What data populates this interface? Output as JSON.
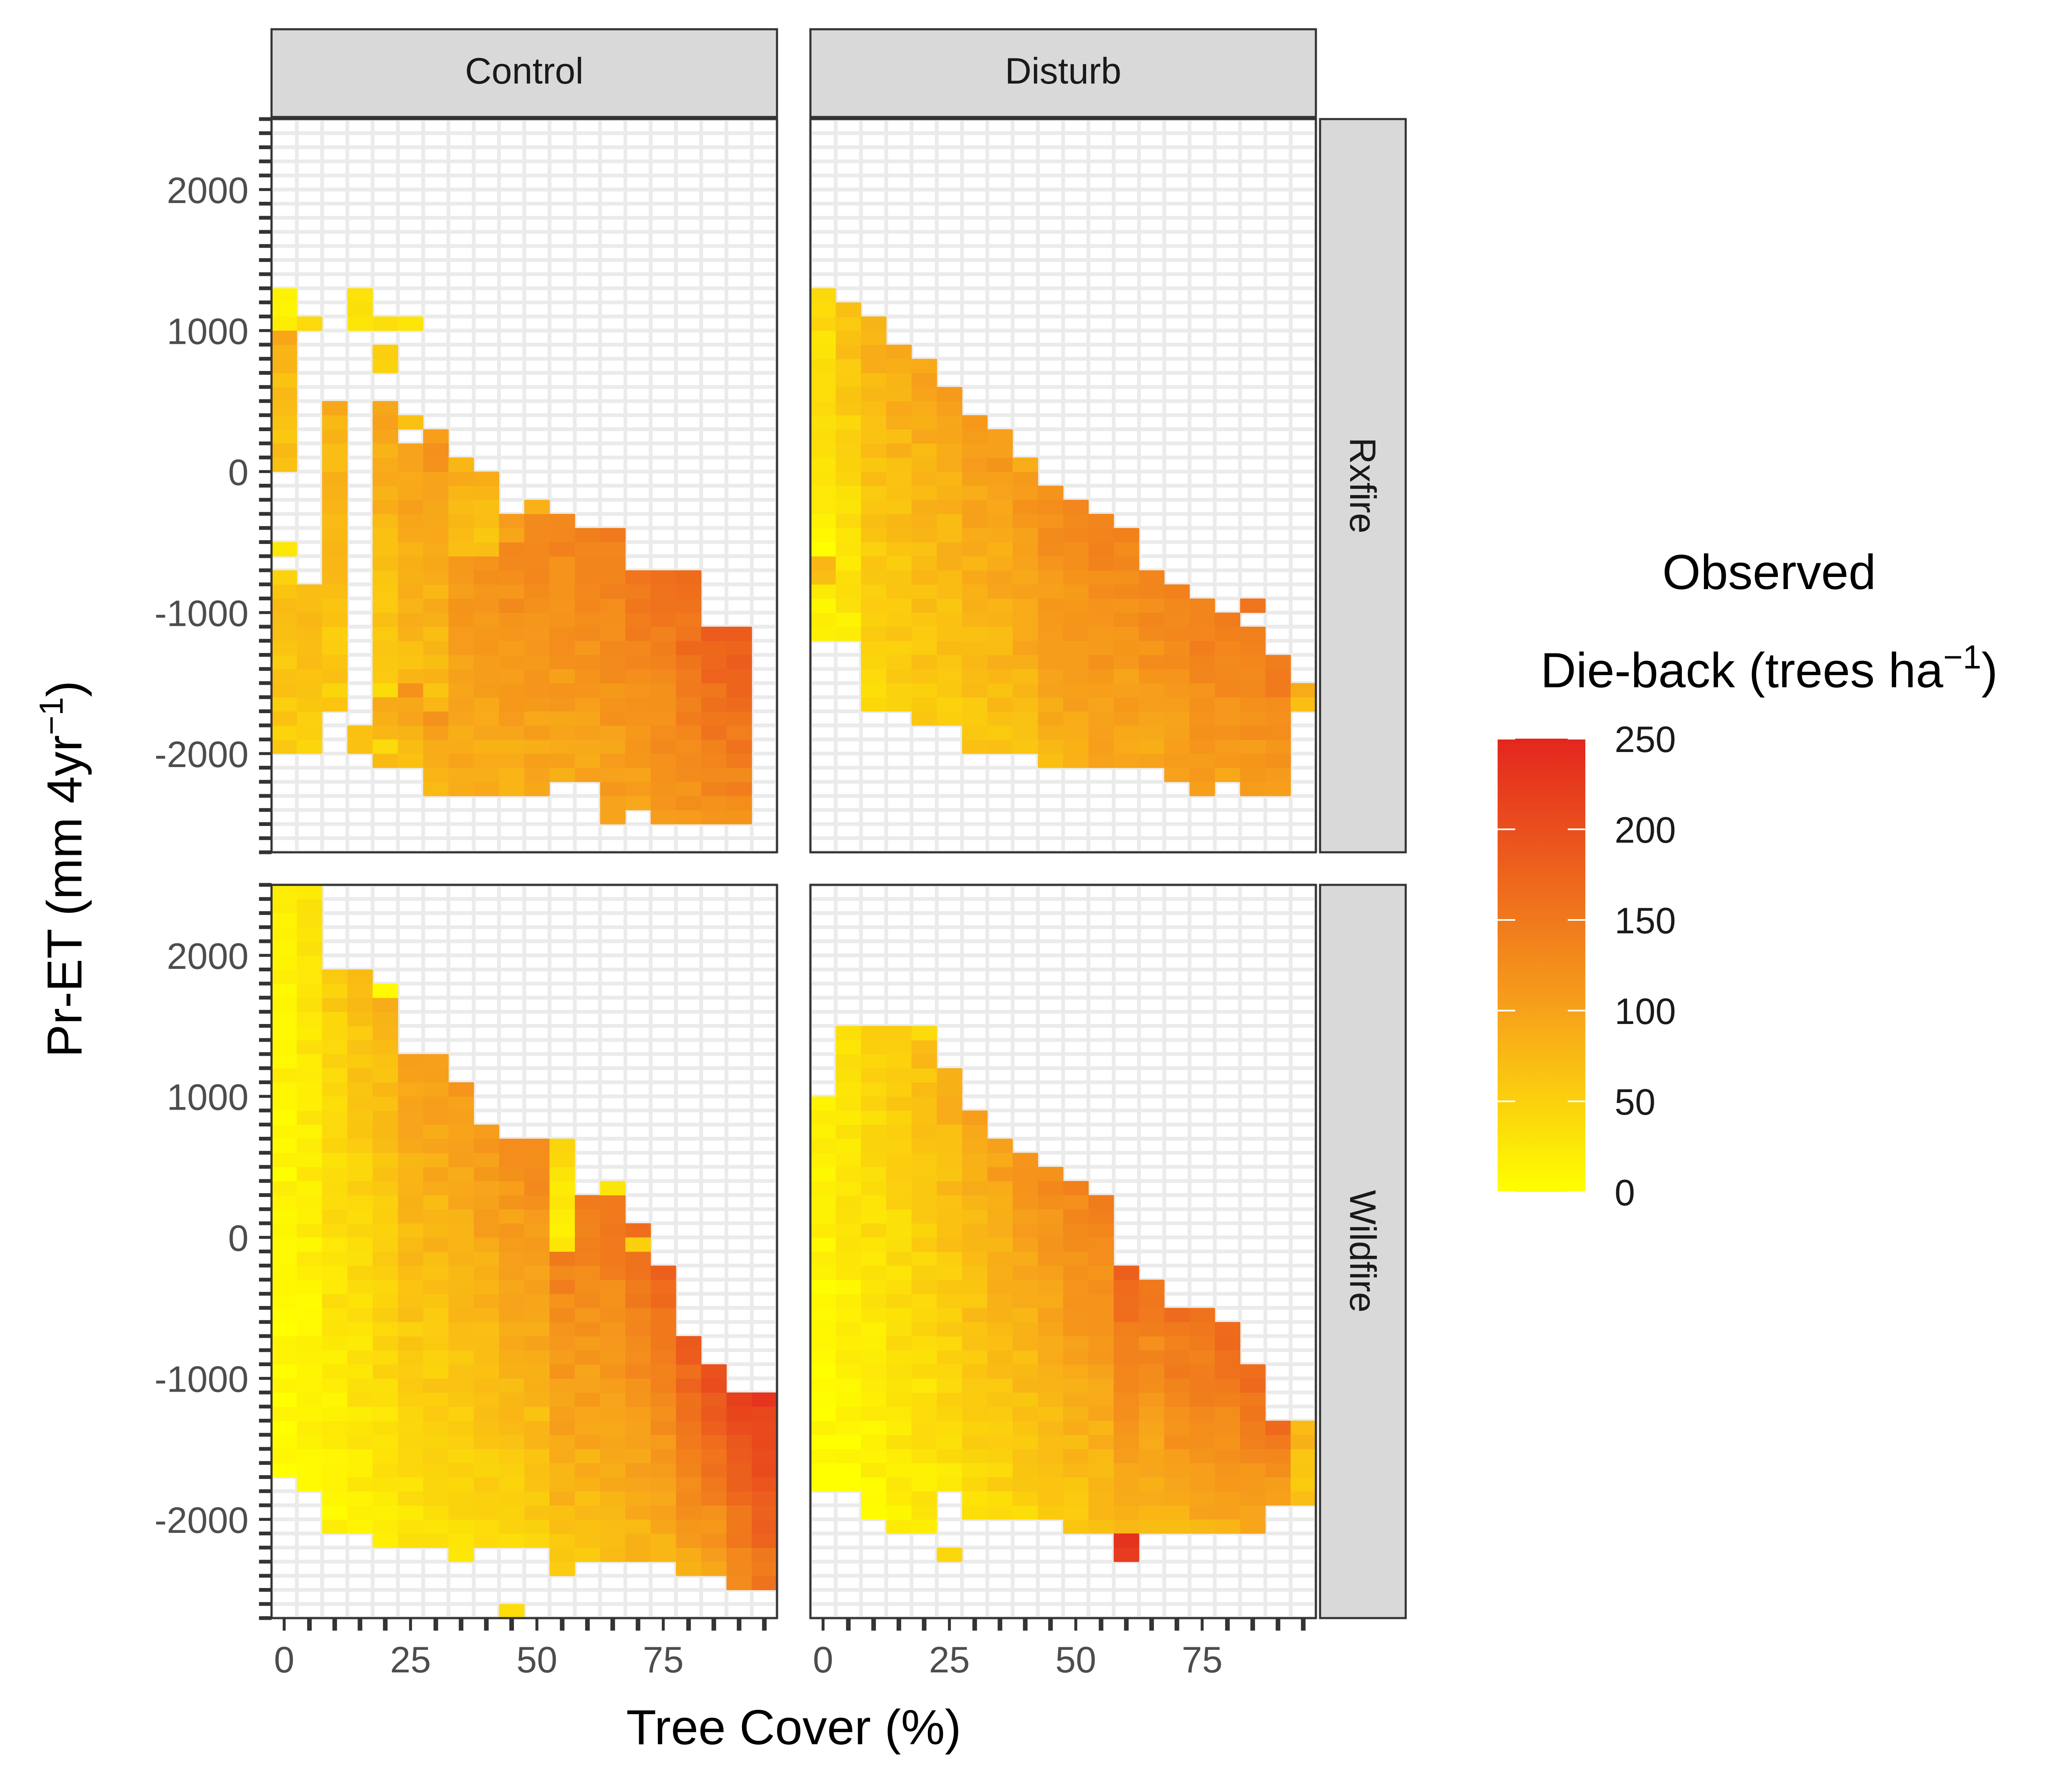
{
  "chart_data": {
    "type": "heatmap",
    "facet_columns": [
      "Control",
      "Disturb"
    ],
    "facet_rows": [
      "Rxfire",
      "Wildfire"
    ],
    "xlabel": "Tree Cover (%)",
    "ylabel": {
      "main": "Pr-ET (mm 4yr",
      "sup": "−1",
      "close": ")"
    },
    "x_ticks": [
      0,
      25,
      50,
      75
    ],
    "y_ticks": [
      2000,
      1000,
      0,
      -1000,
      -2000
    ],
    "x_range": [
      -2.5,
      97.5
    ],
    "y_range": [
      -2700,
      2500
    ],
    "bin_width_x": 5,
    "bin_width_y": 100,
    "color_scale": {
      "low": "#FFFF00",
      "mid": "#F7A21B",
      "high": "#E3261E",
      "min": 0,
      "max": 250
    },
    "legend": {
      "title_line1": "Observed",
      "title_line2": "Die-back (trees ha",
      "title_sup": "−1",
      "title_close": ")",
      "ticks": [
        250,
        200,
        150,
        100,
        50,
        0
      ],
      "position": "right"
    },
    "grid": true,
    "panels": {
      "Control|Rxfire": [
        [
          0,
          -2000,
          -800,
          55,
          70
        ],
        [
          0,
          1000,
          1300,
          15,
          20
        ],
        [
          5,
          -2000,
          -800,
          45,
          80
        ],
        [
          0,
          0,
          1000,
          40,
          90
        ],
        [
          5,
          1000,
          1100,
          40,
          50
        ],
        [
          15,
          1000,
          1300,
          30,
          40
        ],
        [
          0,
          0,
          200,
          65,
          80
        ],
        [
          0,
          -600,
          -500,
          20,
          30
        ],
        [
          0,
          -800,
          -700,
          45,
          55
        ],
        [
          10,
          -1700,
          500,
          55,
          85
        ],
        [
          15,
          -2000,
          -1800,
          60,
          70
        ],
        [
          20,
          -1600,
          500,
          50,
          100
        ],
        [
          20,
          -2100,
          -1600,
          65,
          85
        ],
        [
          20,
          -2000,
          -1900,
          45,
          50
        ],
        [
          20,
          1000,
          1100,
          45,
          50
        ],
        [
          20,
          700,
          900,
          45,
          60
        ],
        [
          25,
          -2100,
          -1500,
          75,
          110
        ],
        [
          25,
          -1500,
          200,
          70,
          105
        ],
        [
          25,
          1000,
          1100,
          20,
          25
        ],
        [
          25,
          300,
          400,
          60,
          70
        ],
        [
          30,
          -2300,
          -1700,
          80,
          110
        ],
        [
          30,
          -1700,
          300,
          70,
          110
        ],
        [
          30,
          0,
          200,
          110,
          120
        ],
        [
          35,
          -2300,
          -600,
          85,
          115
        ],
        [
          35,
          -600,
          100,
          70,
          85
        ],
        [
          40,
          -2300,
          -600,
          85,
          120
        ],
        [
          40,
          -600,
          0,
          65,
          80
        ],
        [
          45,
          -2300,
          -500,
          85,
          130
        ],
        [
          45,
          -500,
          -300,
          90,
          100
        ],
        [
          50,
          -2300,
          -300,
          90,
          135
        ],
        [
          50,
          -300,
          -200,
          90,
          100
        ],
        [
          55,
          -2200,
          -300,
          95,
          135
        ],
        [
          60,
          -2200,
          -400,
          95,
          140
        ],
        [
          65,
          -2500,
          -700,
          100,
          140
        ],
        [
          65,
          -2200,
          -400,
          100,
          145
        ],
        [
          70,
          -2400,
          -700,
          100,
          150
        ],
        [
          75,
          -2500,
          -700,
          105,
          155
        ],
        [
          75,
          -900,
          -700,
          155,
          170
        ],
        [
          80,
          -2500,
          -1100,
          110,
          165
        ],
        [
          80,
          -1100,
          -700,
          145,
          165
        ],
        [
          85,
          -2500,
          -1100,
          120,
          180
        ],
        [
          90,
          -2500,
          -1100,
          125,
          185
        ]
      ],
      "Disturb|Rxfire": [
        [
          0,
          -1200,
          1300,
          15,
          40
        ],
        [
          0,
          -800,
          -600,
          70,
          80
        ],
        [
          0,
          -600,
          -300,
          5,
          15
        ],
        [
          5,
          -1200,
          1200,
          20,
          70
        ],
        [
          10,
          -1700,
          1100,
          40,
          85
        ],
        [
          15,
          -1700,
          900,
          45,
          90
        ],
        [
          20,
          -1800,
          800,
          55,
          95
        ],
        [
          25,
          -1800,
          600,
          55,
          100
        ],
        [
          30,
          -2000,
          400,
          60,
          105
        ],
        [
          35,
          -2000,
          300,
          65,
          110
        ],
        [
          40,
          -2000,
          0,
          70,
          115
        ],
        [
          40,
          0,
          100,
          80,
          90
        ],
        [
          45,
          -2100,
          -100,
          80,
          125
        ],
        [
          50,
          -2100,
          -200,
          85,
          130
        ],
        [
          55,
          -2100,
          -300,
          90,
          140
        ],
        [
          60,
          -2100,
          -400,
          90,
          135
        ],
        [
          65,
          -2100,
          -700,
          90,
          140
        ],
        [
          70,
          -2200,
          -800,
          95,
          140
        ],
        [
          75,
          -2300,
          -900,
          100,
          145
        ],
        [
          80,
          -2200,
          -1000,
          100,
          145
        ],
        [
          85,
          -2300,
          -1100,
          100,
          150
        ],
        [
          85,
          -1000,
          -900,
          150,
          155
        ],
        [
          90,
          -2300,
          -1300,
          105,
          150
        ],
        [
          95,
          -1700,
          -1500,
          75,
          85
        ]
      ],
      "Control|Wildfire": [
        [
          0,
          -1700,
          2500,
          0,
          20
        ],
        [
          5,
          -1800,
          2500,
          5,
          30
        ],
        [
          10,
          -2100,
          1900,
          10,
          55
        ],
        [
          15,
          -2100,
          1900,
          15,
          70
        ],
        [
          20,
          -2200,
          1700,
          20,
          80
        ],
        [
          20,
          1700,
          1800,
          15,
          20
        ],
        [
          25,
          -2200,
          1300,
          25,
          100
        ],
        [
          30,
          -2200,
          1300,
          30,
          105
        ],
        [
          35,
          -2300,
          1100,
          35,
          110
        ],
        [
          40,
          -2200,
          800,
          40,
          115
        ],
        [
          45,
          -2200,
          700,
          45,
          120
        ],
        [
          50,
          -2200,
          700,
          50,
          130
        ],
        [
          55,
          -2400,
          -100,
          60,
          140
        ],
        [
          55,
          -100,
          700,
          20,
          40
        ],
        [
          60,
          -2300,
          300,
          65,
          145
        ],
        [
          65,
          -2300,
          300,
          70,
          150
        ],
        [
          65,
          300,
          400,
          30,
          40
        ],
        [
          70,
          -2300,
          100,
          75,
          160
        ],
        [
          70,
          -100,
          0,
          60,
          70
        ],
        [
          75,
          -2300,
          -200,
          80,
          170
        ],
        [
          80,
          -2400,
          -700,
          90,
          185
        ],
        [
          85,
          -2400,
          -900,
          100,
          200
        ],
        [
          90,
          -2500,
          -1100,
          120,
          215
        ],
        [
          95,
          -2500,
          -1100,
          150,
          225
        ],
        [
          45,
          -2700,
          -2600,
          40,
          50
        ]
      ],
      "Disturb|Wildfire": [
        [
          0,
          -1800,
          1000,
          0,
          20
        ],
        [
          5,
          -1800,
          1500,
          5,
          35
        ],
        [
          10,
          -2000,
          1500,
          10,
          50
        ],
        [
          15,
          -2100,
          1500,
          15,
          60
        ],
        [
          20,
          -2100,
          1400,
          20,
          70
        ],
        [
          20,
          1400,
          1500,
          30,
          40
        ],
        [
          25,
          -1800,
          1200,
          30,
          85
        ],
        [
          25,
          -2300,
          -2200,
          40,
          50
        ],
        [
          30,
          -2000,
          900,
          35,
          95
        ],
        [
          35,
          -2000,
          700,
          40,
          105
        ],
        [
          40,
          -2000,
          600,
          45,
          115
        ],
        [
          45,
          -2000,
          500,
          50,
          125
        ],
        [
          50,
          -2100,
          400,
          60,
          135
        ],
        [
          55,
          -2100,
          300,
          65,
          140
        ],
        [
          60,
          -2200,
          -200,
          70,
          170
        ],
        [
          60,
          -2300,
          -2100,
          225,
          240
        ],
        [
          65,
          -2100,
          -300,
          75,
          150
        ],
        [
          70,
          -2100,
          -500,
          80,
          160
        ],
        [
          75,
          -2100,
          -500,
          85,
          165
        ],
        [
          80,
          -2100,
          -600,
          90,
          165
        ],
        [
          85,
          -2100,
          -900,
          95,
          165
        ],
        [
          90,
          -1900,
          -1300,
          100,
          160
        ],
        [
          95,
          -1900,
          -1300,
          60,
          80
        ]
      ]
    }
  }
}
